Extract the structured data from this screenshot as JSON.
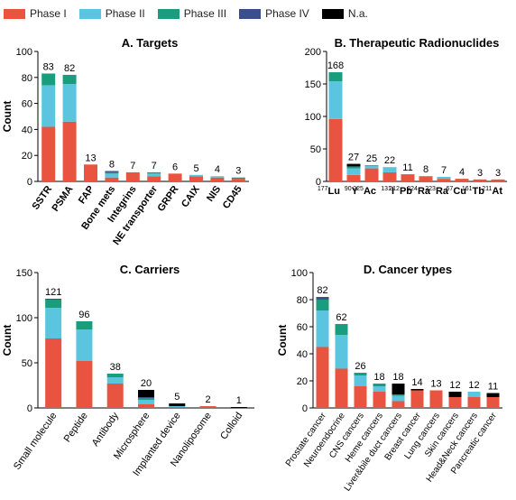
{
  "legend": [
    {
      "label": "Phase I",
      "color": "#e8543f"
    },
    {
      "label": "Phase II",
      "color": "#5bc5df"
    },
    {
      "label": "Phase III",
      "color": "#1a9c7f"
    },
    {
      "label": "Phase IV",
      "color": "#3b4f8b"
    },
    {
      "label": "N.a.",
      "color": "#000000"
    }
  ],
  "chart_data": [
    {
      "type": "bar",
      "stacked": true,
      "title": "A. Targets",
      "ylabel": "Count",
      "ylim": [
        0,
        100
      ],
      "yticks": [
        0,
        20,
        40,
        60,
        80,
        100
      ],
      "categories": [
        "SSTR",
        "PSMA",
        "FAP",
        "Bone mets",
        "Integrins",
        "NE transporter",
        "GRPR",
        "CAIX",
        "NIS",
        "CD45"
      ],
      "totals": [
        "83",
        "82",
        "13",
        "8",
        "7",
        "7",
        "6",
        "5",
        "4",
        "3"
      ],
      "series": [
        {
          "name": "Phase I",
          "values": [
            42,
            46,
            13,
            3,
            7,
            4,
            6,
            4,
            3,
            2
          ]
        },
        {
          "name": "Phase II",
          "values": [
            32,
            29,
            0,
            3,
            0,
            2,
            0,
            1,
            1,
            0
          ]
        },
        {
          "name": "Phase III",
          "values": [
            9,
            7,
            0,
            1,
            0,
            1,
            0,
            0,
            0,
            1
          ]
        },
        {
          "name": "Phase IV",
          "values": [
            0,
            0,
            0,
            1,
            0,
            0,
            0,
            0,
            0,
            0
          ]
        },
        {
          "name": "N.a.",
          "values": [
            0,
            0,
            0,
            0,
            0,
            0,
            0,
            0,
            0,
            0
          ]
        }
      ]
    },
    {
      "type": "bar",
      "stacked": true,
      "title": "B. Therapeutic Radionuclides",
      "ylabel": "",
      "ylim": [
        0,
        200
      ],
      "yticks": [
        0,
        50,
        100,
        150,
        200
      ],
      "categories": [
        {
          "sup": "177",
          "sym": "Lu"
        },
        {
          "sup": "90",
          "sym": "Y"
        },
        {
          "sup": "225",
          "sym": "Ac"
        },
        {
          "sup": "131",
          "sym": "I"
        },
        {
          "sup": "212",
          "sym": "Pb"
        },
        {
          "sup": "224",
          "sym": "Ra"
        },
        {
          "sup": "223",
          "sym": "Ra"
        },
        {
          "sup": "67",
          "sym": "Cu"
        },
        {
          "sup": "161",
          "sym": "Tb"
        },
        {
          "sup": "211",
          "sym": "At"
        }
      ],
      "totals": [
        "168",
        "27",
        "25",
        "22",
        "11",
        "8",
        "7",
        "4",
        "3",
        "3"
      ],
      "series": [
        {
          "name": "Phase I",
          "values": [
            96,
            10,
            20,
            14,
            11,
            8,
            4,
            4,
            3,
            3
          ]
        },
        {
          "name": "Phase II",
          "values": [
            58,
            10,
            4,
            8,
            0,
            0,
            3,
            0,
            0,
            0
          ]
        },
        {
          "name": "Phase III",
          "values": [
            14,
            3,
            1,
            0,
            0,
            0,
            0,
            0,
            0,
            0
          ]
        },
        {
          "name": "Phase IV",
          "values": [
            0,
            0,
            0,
            0,
            0,
            0,
            0,
            0,
            0,
            0
          ]
        },
        {
          "name": "N.a.",
          "values": [
            0,
            4,
            0,
            0,
            0,
            0,
            0,
            0,
            0,
            0
          ]
        }
      ]
    },
    {
      "type": "bar",
      "stacked": true,
      "title": "C. Carriers",
      "ylabel": "Count",
      "ylim": [
        0,
        150
      ],
      "yticks": [
        0,
        50,
        100,
        150
      ],
      "categories": [
        "Small molecule",
        "Peptide",
        "Antibody",
        "Microsphere",
        "Implanted device",
        "Nanoliposome",
        "Colloid"
      ],
      "totals": [
        "121",
        "96",
        "38",
        "20",
        "5",
        "2",
        "1"
      ],
      "series": [
        {
          "name": "Phase I",
          "values": [
            77,
            52,
            27,
            4,
            1,
            2,
            0
          ]
        },
        {
          "name": "Phase II",
          "values": [
            34,
            35,
            7,
            5,
            1,
            0,
            0
          ]
        },
        {
          "name": "Phase III",
          "values": [
            9,
            9,
            4,
            2,
            0,
            0,
            0
          ]
        },
        {
          "name": "Phase IV",
          "values": [
            1,
            0,
            0,
            1,
            0,
            0,
            0
          ]
        },
        {
          "name": "N.a.",
          "values": [
            0,
            0,
            0,
            8,
            3,
            0,
            1
          ]
        }
      ]
    },
    {
      "type": "bar",
      "stacked": true,
      "title": "D. Cancer types",
      "ylabel": "Count",
      "ylim": [
        0,
        100
      ],
      "yticks": [
        0,
        20,
        40,
        60,
        80,
        100
      ],
      "categories": [
        "Prostate cancer",
        "Neuroendocrine",
        "CNS cancers",
        "Heme cancers",
        "Liver&bile duct cancers",
        "Breast cancer",
        "Lung cancers",
        "Skin cancers",
        "Head&Neck cancers",
        "Pancreatic cancer"
      ],
      "totals": [
        "82",
        "62",
        "26",
        "18",
        "18",
        "14",
        "13",
        "12",
        "12",
        "11"
      ],
      "series": [
        {
          "name": "Phase I",
          "values": [
            45,
            29,
            16,
            12,
            5,
            13,
            13,
            8,
            8,
            8
          ]
        },
        {
          "name": "Phase II",
          "values": [
            27,
            25,
            8,
            4,
            4,
            0,
            0,
            0,
            4,
            0
          ]
        },
        {
          "name": "Phase III",
          "values": [
            8,
            8,
            2,
            2,
            1,
            0,
            0,
            0,
            0,
            0
          ]
        },
        {
          "name": "Phase IV",
          "values": [
            2,
            0,
            0,
            0,
            0,
            0,
            0,
            0,
            0,
            0
          ]
        },
        {
          "name": "N.a.",
          "values": [
            0,
            0,
            0,
            0,
            8,
            1,
            0,
            4,
            0,
            3
          ]
        }
      ]
    }
  ]
}
